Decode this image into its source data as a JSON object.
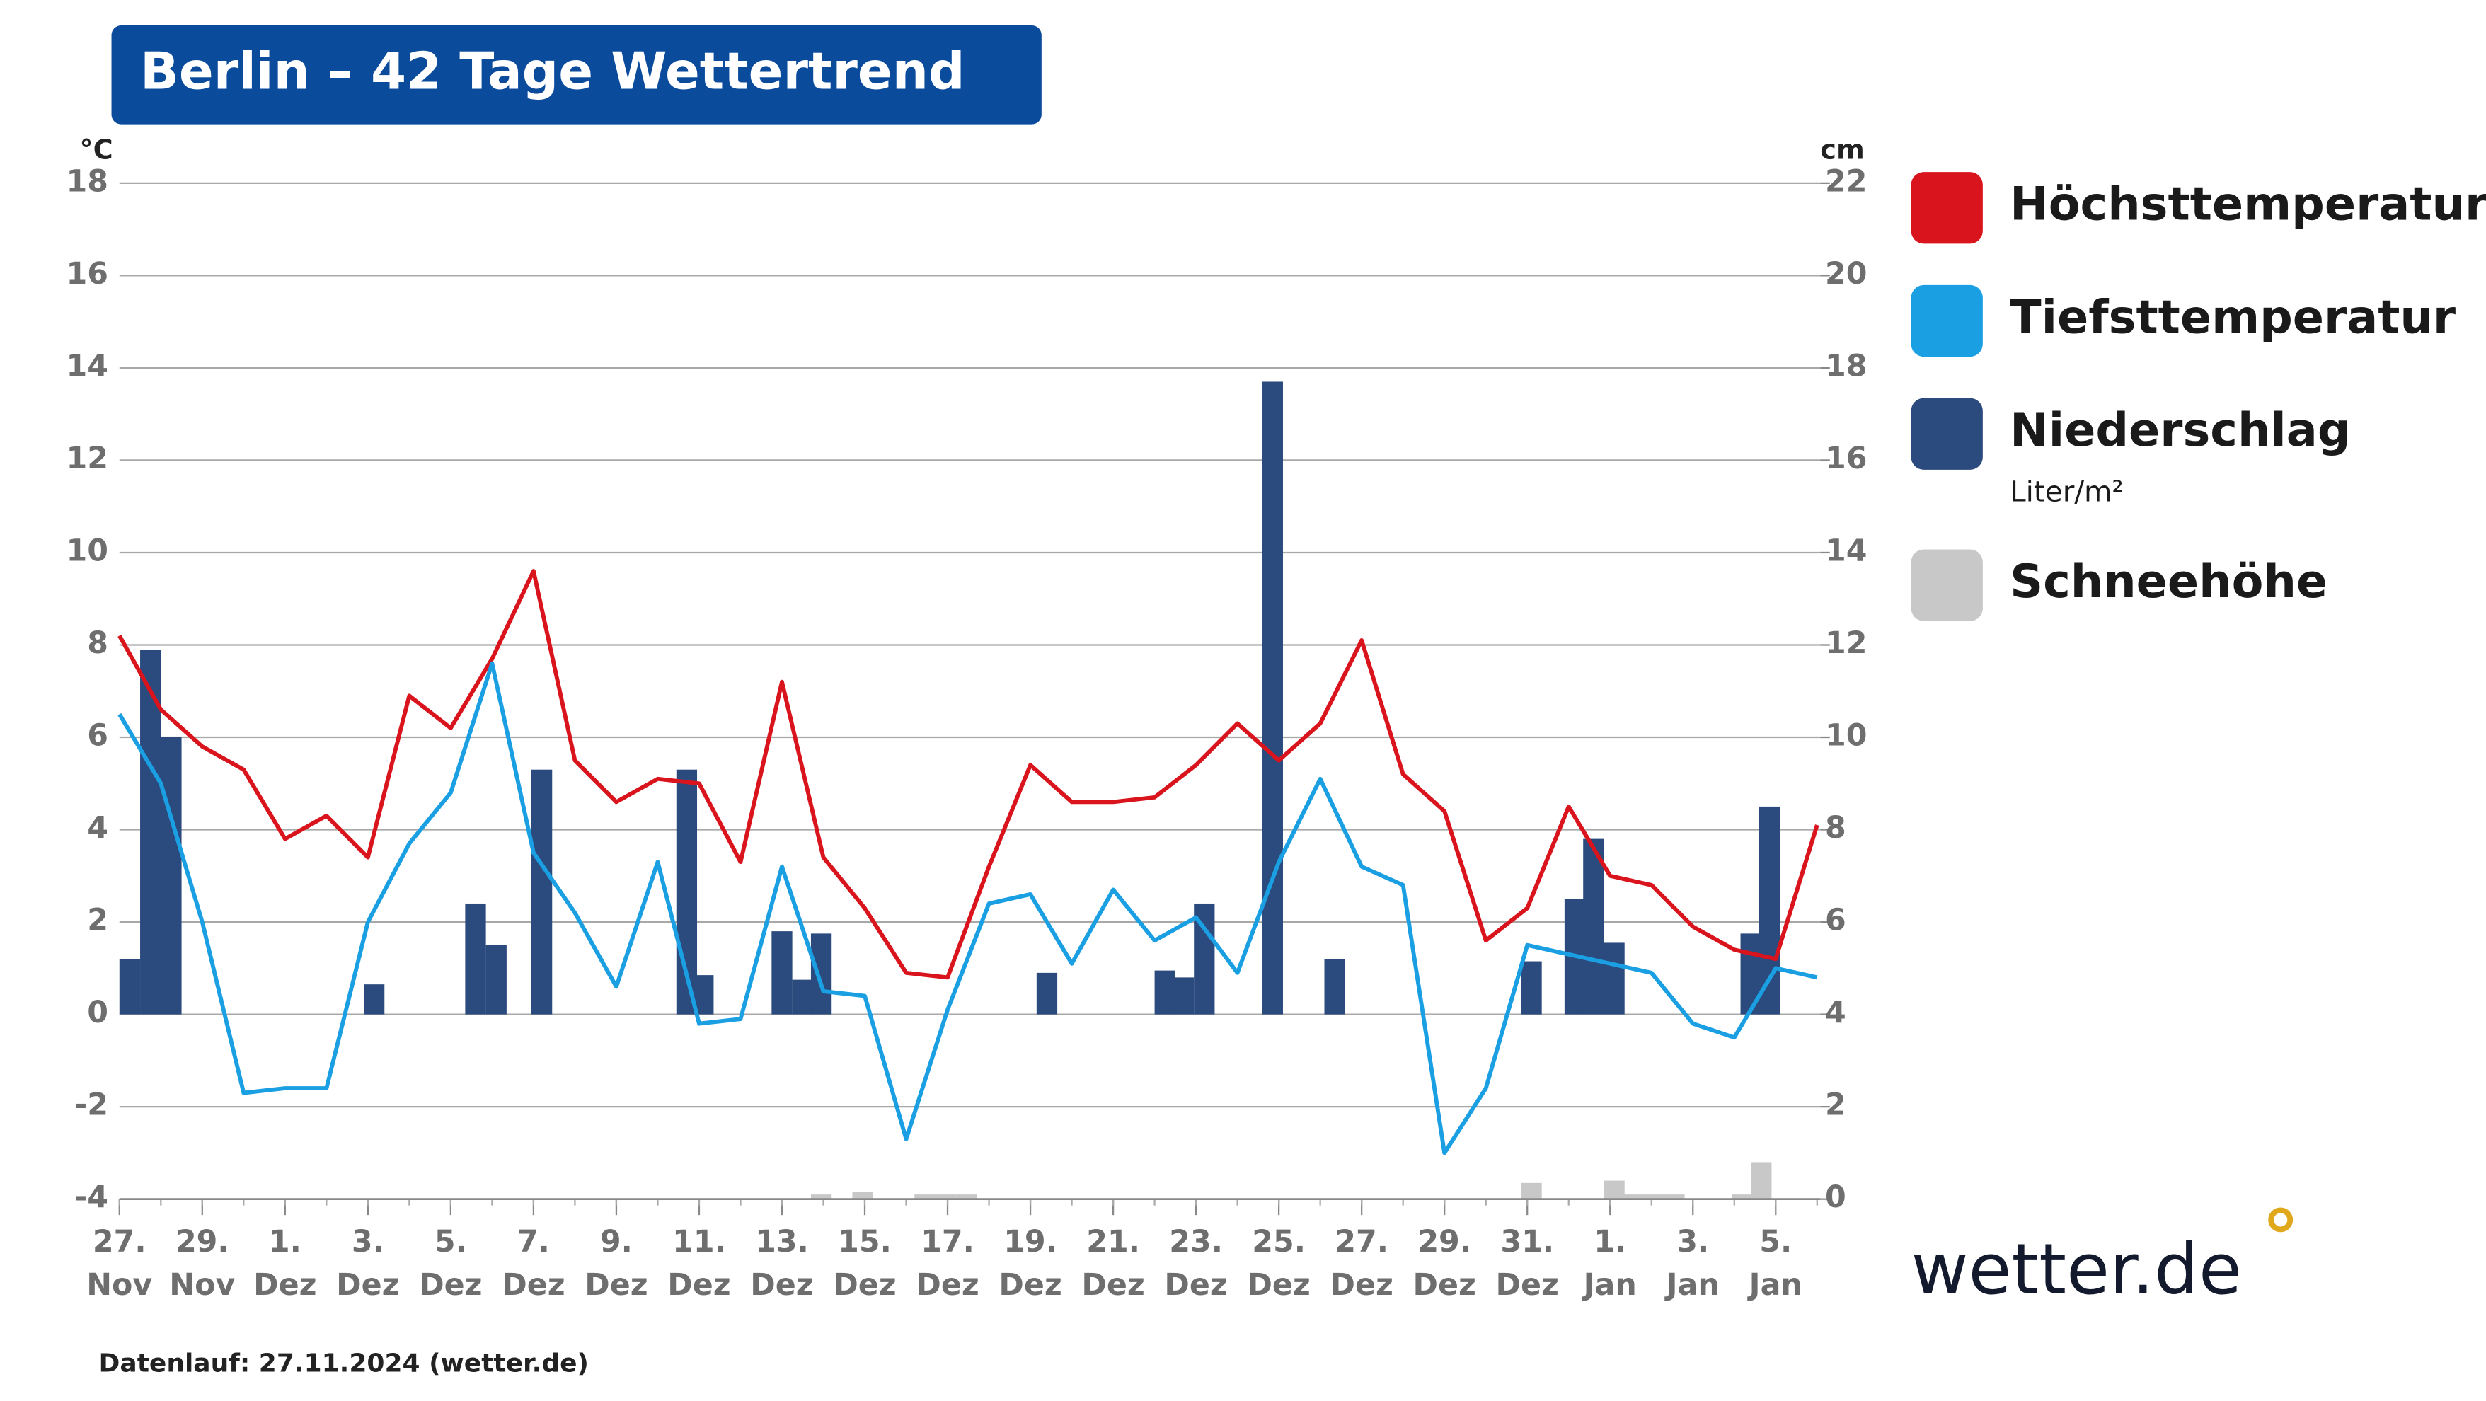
{
  "chart_data": {
    "type": "line",
    "title": "Berlin – 42 Tage Wettertrend",
    "ylabel": "°C",
    "y2label": "cm",
    "ylim": [
      -4,
      18
    ],
    "yticks": [
      -4,
      -2,
      0,
      2,
      4,
      6,
      8,
      10,
      12,
      14,
      16,
      18
    ],
    "y2lim": [
      0,
      22
    ],
    "y2ticks": [
      0,
      2,
      4,
      6,
      8,
      10,
      12,
      14,
      16,
      18,
      20,
      22
    ],
    "xlim": [
      0,
      41
    ],
    "xticks": [
      {
        "value": 0,
        "label": "27."
      },
      {
        "value": 2,
        "label": "29."
      },
      {
        "value": 4,
        "label": "1."
      },
      {
        "value": 6,
        "label": "3."
      },
      {
        "value": 8,
        "label": "5."
      },
      {
        "value": 10,
        "label": "7."
      },
      {
        "value": 12,
        "label": "9."
      },
      {
        "value": 14,
        "label": "11."
      },
      {
        "value": 16,
        "label": "13."
      },
      {
        "value": 18,
        "label": "15."
      },
      {
        "value": 20,
        "label": "17."
      },
      {
        "value": 22,
        "label": "19."
      },
      {
        "value": 24,
        "label": "21."
      },
      {
        "value": 26,
        "label": "23."
      },
      {
        "value": 28,
        "label": "25."
      },
      {
        "value": 30,
        "label": "27."
      },
      {
        "value": 32,
        "label": "29."
      },
      {
        "value": 34,
        "label": "31."
      },
      {
        "value": 36,
        "label": "1."
      },
      {
        "value": 38,
        "label": "3."
      },
      {
        "value": 40,
        "label": "5."
      }
    ],
    "xtick_months": [
      "Nov",
      "Nov",
      "Dez",
      "Dez",
      "Dez",
      "Dez",
      "Dez",
      "Dez",
      "Dez",
      "Dez",
      "Dez",
      "Dez",
      "Dez",
      "Dez",
      "Dez",
      "Dez",
      "Dez",
      "Dez",
      "Jan",
      "Jan",
      "Jan"
    ],
    "grid": true,
    "series": [
      {
        "name": "Höchsttemperatur",
        "color": "#d9141c",
        "type": "line",
        "values": [
          8.2,
          6.6,
          5.8,
          5.3,
          3.8,
          4.3,
          3.4,
          6.9,
          6.2,
          7.7,
          9.6,
          5.5,
          4.6,
          5.1,
          5.0,
          3.3,
          7.2,
          3.4,
          2.3,
          0.9,
          0.8,
          3.2,
          5.4,
          4.6,
          4.6,
          4.7,
          5.4,
          6.3,
          5.5,
          6.3,
          8.1,
          5.2,
          4.4,
          1.6,
          2.3,
          4.5,
          3.0,
          2.8,
          1.9,
          1.4,
          1.2,
          4.1
        ]
      },
      {
        "name": "Tiefsttemperatur",
        "color": "#1a9fe3",
        "type": "line",
        "values": [
          6.5,
          5.0,
          2.0,
          -1.7,
          -1.6,
          -1.6,
          2.0,
          3.7,
          4.8,
          7.6,
          3.5,
          2.2,
          0.6,
          3.3,
          -0.2,
          -0.1,
          3.2,
          0.5,
          0.4,
          -2.7,
          0.1,
          2.4,
          2.6,
          1.1,
          2.7,
          1.6,
          2.1,
          0.9,
          3.3,
          5.1,
          3.2,
          2.8,
          -3.0,
          -1.6,
          1.5,
          1.3,
          1.1,
          0.9,
          -0.2,
          -0.5,
          1.0,
          0.8
        ]
      },
      {
        "name": "Niederschlag",
        "unit": "Liter/m²",
        "color": "#2b4a7e",
        "type": "bar",
        "x": [
          0,
          0.5,
          1.0,
          5.9,
          8.35,
          8.85,
          9.95,
          13.45,
          13.85,
          15.75,
          16.25,
          16.7,
          22.15,
          25.0,
          25.45,
          25.95,
          27.6,
          29.1,
          33.85,
          34.9,
          35.35,
          35.85,
          39.15,
          39.6
        ],
        "values": [
          1.2,
          7.9,
          6.0,
          0.65,
          2.4,
          1.5,
          5.3,
          5.3,
          0.85,
          1.8,
          0.75,
          1.75,
          0.9,
          0.95,
          0.8,
          2.4,
          13.7,
          1.2,
          1.15,
          2.5,
          3.8,
          1.55,
          1.75,
          4.5
        ]
      },
      {
        "name": "Schneehöhe",
        "color": "#c8c8c8",
        "type": "bar",
        "axis": "y2",
        "x": [
          16.7,
          17.7,
          19.2,
          19.7,
          20.2,
          33.85,
          35.85,
          36.3,
          36.8,
          37.3,
          38.95,
          39.4
        ],
        "values": [
          0.1,
          0.15,
          0.1,
          0.1,
          0.1,
          0.35,
          0.4,
          0.1,
          0.1,
          0.1,
          0.1,
          0.8
        ]
      }
    ],
    "footnote": "Datenlauf: 27.11.2024 (wetter.de)",
    "logo": "wetter.de"
  }
}
